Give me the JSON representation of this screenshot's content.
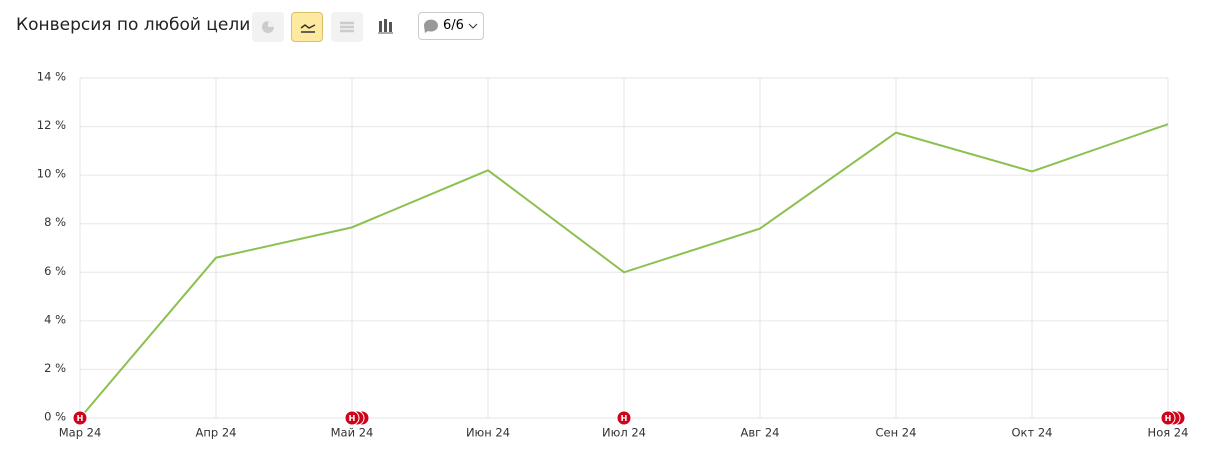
{
  "toolbar": {
    "annotations_button": "6/6"
  },
  "chart_data": {
    "type": "line",
    "title": "Конверсия по любой цели",
    "categories": [
      "Мар 24",
      "Апр 24",
      "Май 24",
      "Июн 24",
      "Июл 24",
      "Авг 24",
      "Сен 24",
      "Окт 24",
      "Ноя 24"
    ],
    "values": [
      0,
      6.6,
      7.85,
      10.2,
      6.0,
      7.8,
      11.75,
      10.15,
      12.1
    ],
    "color": "#8cc152",
    "ylim": [
      0,
      14
    ],
    "yticks": [
      {
        "value": 0,
        "label": "0 %"
      },
      {
        "value": 2,
        "label": "2 %"
      },
      {
        "value": 4,
        "label": "4 %"
      },
      {
        "value": 6,
        "label": "6 %"
      },
      {
        "value": 8,
        "label": "8 %"
      },
      {
        "value": 10,
        "label": "10 %"
      },
      {
        "value": 12,
        "label": "12 %"
      },
      {
        "value": 14,
        "label": "14 %"
      }
    ],
    "grid": true,
    "annotations": [
      {
        "x": "Мар 24",
        "count": 1,
        "label": "Н"
      },
      {
        "x": "Май 24",
        "count": 3,
        "label": "Н"
      },
      {
        "x": "Июл 24",
        "count": 1,
        "label": "Н"
      },
      {
        "x": "Ноя 24",
        "count": 3,
        "label": "Н"
      }
    ]
  }
}
